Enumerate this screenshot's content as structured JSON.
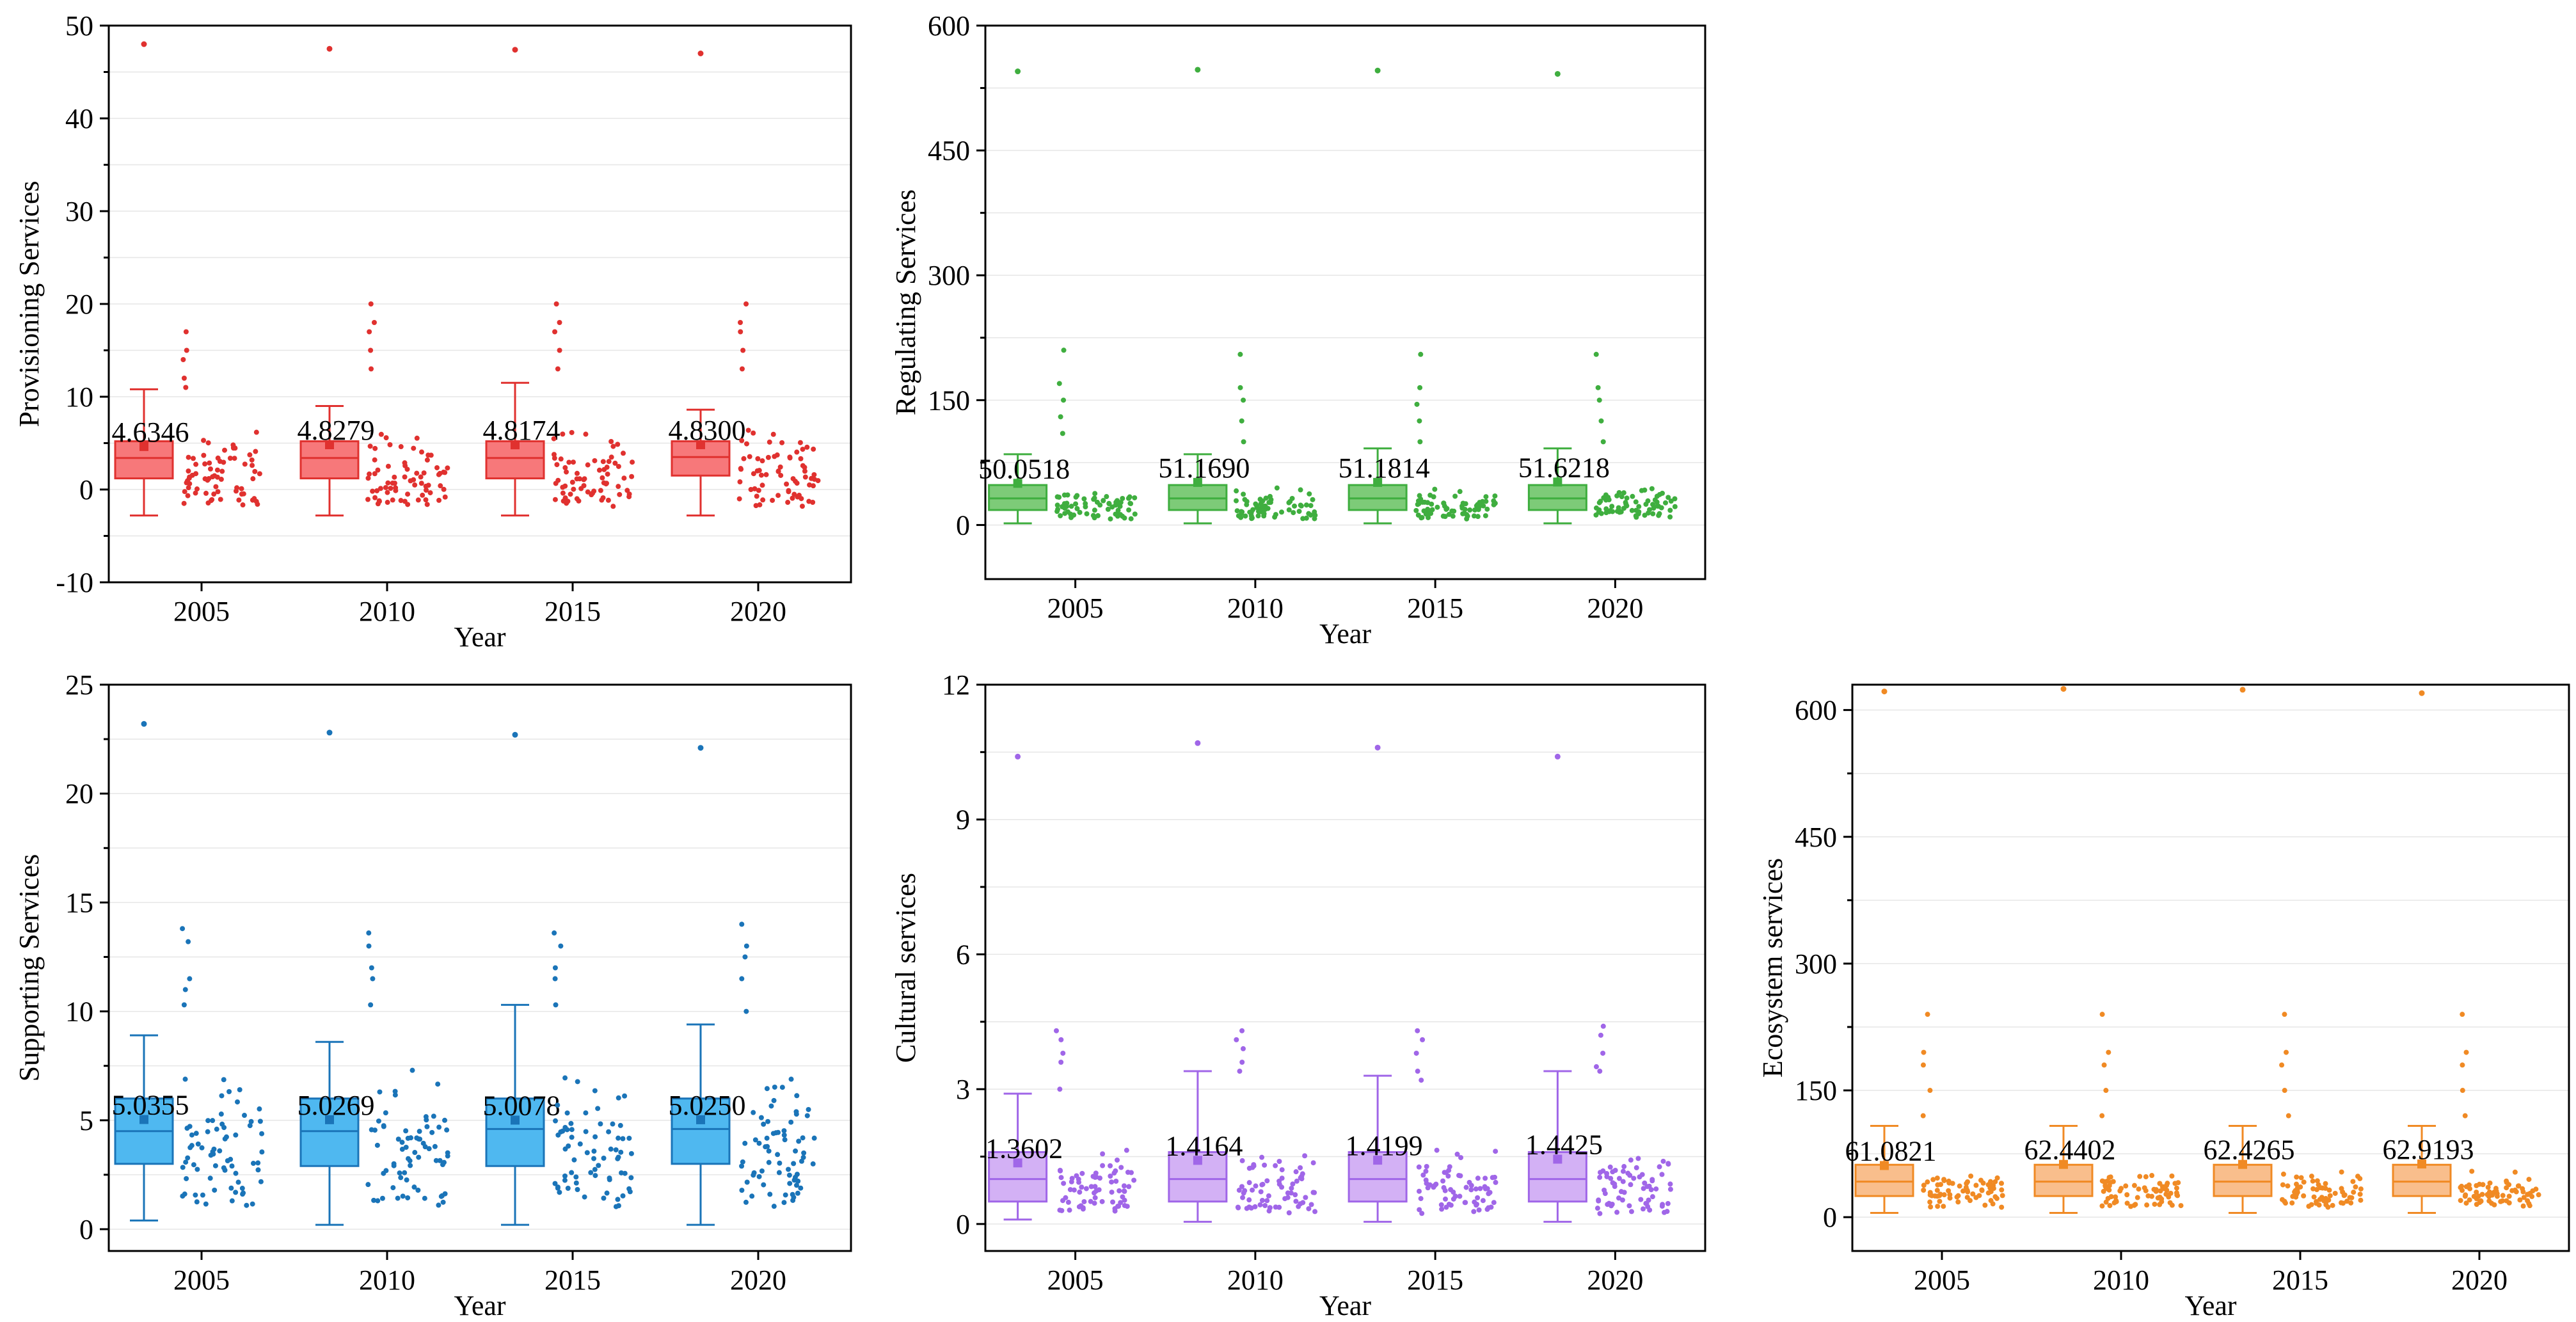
{
  "figure": {
    "description_labels": "Five box-plot panels of ecosystem services by year"
  },
  "chart_data": [
    {
      "id": "provisioning",
      "type": "box",
      "color": "#e0312f",
      "fill": "#f7787a",
      "title": "",
      "xlabel": "Year",
      "ylabel": "Provisioning Services",
      "categories": [
        "2005",
        "2010",
        "2015",
        "2020"
      ],
      "ylim": [
        -10,
        50
      ],
      "yticks": [
        -10,
        0,
        10,
        20,
        30,
        40,
        50
      ],
      "mean_labels": [
        "4.6346",
        "4.8279",
        "4.8174",
        "4.8300"
      ],
      "boxes": [
        {
          "q1": 1.2,
          "median": 3.4,
          "q3": 5.2,
          "whisker_low": -2.8,
          "whisker_high": 10.8,
          "mean": 4.6346,
          "outlier": 48
        },
        {
          "q1": 1.2,
          "median": 3.4,
          "q3": 5.2,
          "whisker_low": -2.8,
          "whisker_high": 9.0,
          "mean": 4.8279,
          "outlier": 47.5
        },
        {
          "q1": 1.2,
          "median": 3.4,
          "q3": 5.2,
          "whisker_low": -2.8,
          "whisker_high": 11.5,
          "mean": 4.8174,
          "outlier": 47.4
        },
        {
          "q1": 1.5,
          "median": 3.5,
          "q3": 5.2,
          "whisker_low": -2.8,
          "whisker_high": 8.6,
          "mean": 4.83,
          "outlier": 47.0
        }
      ],
      "scatter_extremes": [
        [
          17,
          15,
          14,
          12,
          11
        ],
        [
          20,
          18,
          17,
          15,
          13
        ],
        [
          20,
          18,
          17,
          15,
          13
        ],
        [
          20,
          18,
          17,
          15,
          13
        ]
      ],
      "scatter_range": [
        -3,
        9
      ]
    },
    {
      "id": "regulating",
      "type": "box",
      "color": "#3fae3f",
      "fill": "#7dcb78",
      "title": "",
      "xlabel": "Year",
      "ylabel": "Regulating Services",
      "categories": [
        "2005",
        "2010",
        "2015",
        "2020"
      ],
      "ylim": [
        -65,
        600
      ],
      "yticks": [
        0,
        150,
        300,
        450,
        600
      ],
      "mean_labels": [
        "50.0518",
        "51.1690",
        "51.1814",
        "51.6218"
      ],
      "boxes": [
        {
          "q1": 18,
          "median": 32,
          "q3": 48,
          "whisker_low": 2,
          "whisker_high": 85,
          "mean": 50.0518,
          "outlier": 545
        },
        {
          "q1": 18,
          "median": 32,
          "q3": 48,
          "whisker_low": 2,
          "whisker_high": 85,
          "mean": 51.169,
          "outlier": 547
        },
        {
          "q1": 18,
          "median": 32,
          "q3": 48,
          "whisker_low": 2,
          "whisker_high": 92,
          "mean": 51.1814,
          "outlier": 546
        },
        {
          "q1": 18,
          "median": 32,
          "q3": 48,
          "whisker_low": 2,
          "whisker_high": 92,
          "mean": 51.6218,
          "outlier": 542
        }
      ],
      "scatter_extremes": [
        [
          210,
          170,
          150,
          130,
          110
        ],
        [
          205,
          165,
          150,
          125,
          100
        ],
        [
          205,
          165,
          145,
          125,
          100
        ],
        [
          205,
          165,
          150,
          125,
          100
        ]
      ],
      "scatter_range": [
        2,
        55
      ]
    },
    {
      "id": "supporting",
      "type": "box",
      "color": "#1a74b8",
      "fill": "#4fb8f0",
      "title": "",
      "xlabel": "Year",
      "ylabel": "Supporting Services",
      "categories": [
        "2005",
        "2010",
        "2015",
        "2020"
      ],
      "ylim": [
        -1,
        25
      ],
      "yticks": [
        0,
        5,
        10,
        15,
        20,
        25
      ],
      "mean_labels": [
        "5.0355",
        "5.0269",
        "5.0078",
        "5.0250"
      ],
      "boxes": [
        {
          "q1": 3.0,
          "median": 4.5,
          "q3": 6.0,
          "whisker_low": 0.4,
          "whisker_high": 8.9,
          "mean": 5.0355,
          "outlier": 23.2
        },
        {
          "q1": 2.9,
          "median": 4.5,
          "q3": 6.0,
          "whisker_low": 0.2,
          "whisker_high": 8.6,
          "mean": 5.0269,
          "outlier": 22.8
        },
        {
          "q1": 2.9,
          "median": 4.6,
          "q3": 6.0,
          "whisker_low": 0.2,
          "whisker_high": 10.3,
          "mean": 5.0078,
          "outlier": 22.7
        },
        {
          "q1": 3.0,
          "median": 4.6,
          "q3": 6.0,
          "whisker_low": 0.2,
          "whisker_high": 9.4,
          "mean": 5.025,
          "outlier": 22.1
        }
      ],
      "scatter_extremes": [
        [
          13.8,
          13.2,
          11.5,
          11.0,
          10.3
        ],
        [
          13.6,
          13.0,
          12.0,
          11.5,
          10.3
        ],
        [
          13.6,
          13.0,
          12.0,
          11.5,
          10.3
        ],
        [
          14.0,
          13.0,
          12.5,
          11.5,
          10.0
        ]
      ],
      "scatter_range": [
        0.2,
        9
      ]
    },
    {
      "id": "cultural",
      "type": "box",
      "color": "#a066e8",
      "fill": "#d3b1f5",
      "title": "",
      "xlabel": "Year",
      "ylabel": "Cultural services",
      "categories": [
        "2005",
        "2010",
        "2015",
        "2020"
      ],
      "ylim": [
        -0.6,
        12
      ],
      "yticks": [
        0,
        3,
        6,
        9,
        12
      ],
      "mean_labels": [
        "1.3602",
        "1.4164",
        "1.4199",
        "1.4425"
      ],
      "boxes": [
        {
          "q1": 0.5,
          "median": 1.0,
          "q3": 1.6,
          "whisker_low": 0.1,
          "whisker_high": 2.9,
          "mean": 1.3602,
          "outlier": 10.4
        },
        {
          "q1": 0.5,
          "median": 1.0,
          "q3": 1.6,
          "whisker_low": 0.05,
          "whisker_high": 3.4,
          "mean": 1.4164,
          "outlier": 10.7
        },
        {
          "q1": 0.5,
          "median": 1.0,
          "q3": 1.6,
          "whisker_low": 0.05,
          "whisker_high": 3.3,
          "mean": 1.4199,
          "outlier": 10.6
        },
        {
          "q1": 0.5,
          "median": 1.0,
          "q3": 1.6,
          "whisker_low": 0.05,
          "whisker_high": 3.4,
          "mean": 1.4425,
          "outlier": 10.4
        }
      ],
      "scatter_extremes": [
        [
          4.3,
          4.1,
          3.8,
          3.6,
          3.0
        ],
        [
          4.3,
          4.1,
          3.9,
          3.6,
          3.4
        ],
        [
          4.3,
          4.1,
          3.8,
          3.4,
          3.2
        ],
        [
          4.4,
          4.2,
          3.8,
          3.5,
          3.4
        ]
      ],
      "scatter_range": [
        0.05,
        2.0
      ]
    },
    {
      "id": "ecosystem",
      "type": "box",
      "color": "#f08a24",
      "fill": "#f9be8c",
      "title": "",
      "xlabel": "Year",
      "ylabel": "Ecosystem services",
      "categories": [
        "2005",
        "2010",
        "2015",
        "2020"
      ],
      "ylim": [
        -40,
        630
      ],
      "yticks": [
        0,
        150,
        300,
        450,
        600
      ],
      "mean_labels": [
        "61.0821",
        "62.4402",
        "62.4265",
        "62.9193"
      ],
      "boxes": [
        {
          "q1": 25,
          "median": 42,
          "q3": 62,
          "whisker_low": 5,
          "whisker_high": 108,
          "mean": 61.0821,
          "outlier": 622
        },
        {
          "q1": 25,
          "median": 42,
          "q3": 62,
          "whisker_low": 5,
          "whisker_high": 108,
          "mean": 62.4402,
          "outlier": 625
        },
        {
          "q1": 25,
          "median": 42,
          "q3": 62,
          "whisker_low": 5,
          "whisker_high": 108,
          "mean": 62.4265,
          "outlier": 624
        },
        {
          "q1": 25,
          "median": 42,
          "q3": 62,
          "whisker_low": 5,
          "whisker_high": 108,
          "mean": 62.9193,
          "outlier": 620
        }
      ],
      "scatter_extremes": [
        [
          240,
          195,
          180,
          150,
          120
        ],
        [
          240,
          195,
          180,
          150,
          120
        ],
        [
          240,
          195,
          180,
          150,
          120
        ],
        [
          240,
          195,
          180,
          150,
          120
        ]
      ],
      "scatter_range": [
        5,
        70
      ]
    }
  ]
}
